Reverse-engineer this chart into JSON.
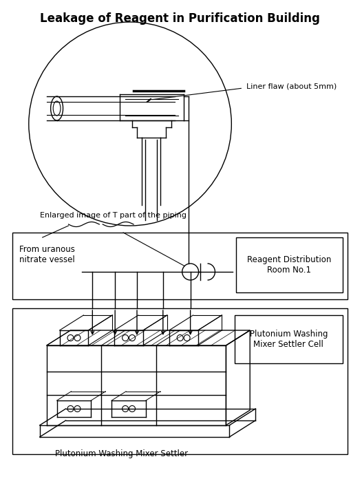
{
  "title": "Leakage of Reagent in Purification Building",
  "title_fontsize": 12,
  "bg_color": "#ffffff",
  "line_color": "#000000",
  "fig_width": 5.26,
  "fig_height": 6.99,
  "dpi": 100,
  "annotations": {
    "liner_flaw": "Liner flaw (about 5mm)",
    "enlarged_image": "Enlarged image of T part of the piping",
    "from_uranous": "From uranous\nnitrate vessel",
    "reagent_dist": "Reagent Distribution\nRoom No.1",
    "plutonium_washing_cell": "Plutonium Washing\nMixer Settler Cell",
    "plutonium_washing_mixer": "Plutonium Washing Mixer Settler"
  }
}
